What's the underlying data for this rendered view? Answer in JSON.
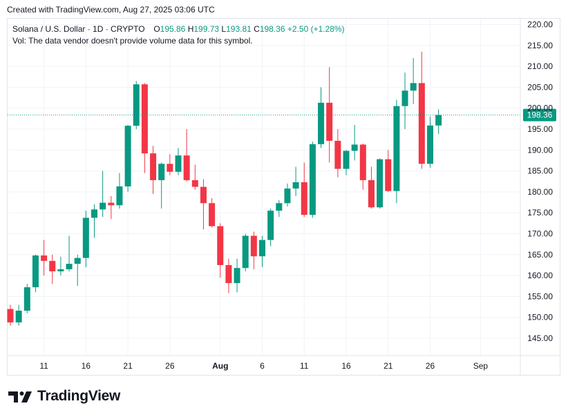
{
  "header": {
    "caption": "Created with TradingView.com, Aug 27, 2025 03:06 UTC"
  },
  "legend": {
    "symbol": "Solana / U.S. Dollar · 1D · CRYPTO",
    "o_label": "O",
    "o_value": "195.86",
    "h_label": "H",
    "h_value": "199.73",
    "l_label": "L",
    "l_value": "193.81",
    "c_label": "C",
    "c_value": "198.36",
    "change": "+2.50 (+1.28%)",
    "volume_note": "Vol: The data vendor doesn't provide volume data for this symbol."
  },
  "brand": {
    "name": "TradingView"
  },
  "colors": {
    "up": "#089981",
    "down": "#f23645",
    "grid": "#f0f3fa",
    "text": "#131722"
  },
  "chart_data": {
    "type": "candlestick",
    "title": "Solana / U.S. Dollar · 1D · CRYPTO",
    "ylim": [
      142,
      222
    ],
    "y_ticks": [
      145,
      150,
      155,
      160,
      165,
      170,
      175,
      180,
      185,
      190,
      195,
      200,
      205,
      210,
      215,
      220
    ],
    "y_tick_labels": [
      "145.00",
      "150.00",
      "155.00",
      "160.00",
      "165.00",
      "170.00",
      "175.00",
      "180.00",
      "185.00",
      "190.00",
      "195.00",
      "200.00",
      "205.00",
      "210.00",
      "215.00",
      "220.00"
    ],
    "x_ticks": [
      {
        "index": 4,
        "label": "11"
      },
      {
        "index": 9,
        "label": "16"
      },
      {
        "index": 14,
        "label": "21"
      },
      {
        "index": 19,
        "label": "26"
      },
      {
        "index": 25,
        "label": "Aug"
      },
      {
        "index": 30,
        "label": "6"
      },
      {
        "index": 35,
        "label": "11"
      },
      {
        "index": 40,
        "label": "16"
      },
      {
        "index": 45,
        "label": "21"
      },
      {
        "index": 50,
        "label": "26"
      },
      {
        "index": 56,
        "label": "Sep"
      }
    ],
    "last_price": 198.36,
    "last_price_label": "198.36",
    "candles": [
      {
        "o": 152,
        "h": 153,
        "l": 148,
        "c": 148.8
      },
      {
        "o": 148.8,
        "h": 153,
        "l": 148,
        "c": 151.6
      },
      {
        "o": 151.6,
        "h": 158,
        "l": 151,
        "c": 157.2
      },
      {
        "o": 157.2,
        "h": 165,
        "l": 156,
        "c": 164.8
      },
      {
        "o": 164.8,
        "h": 168.5,
        "l": 160,
        "c": 163.5
      },
      {
        "o": 163.5,
        "h": 165,
        "l": 158,
        "c": 161
      },
      {
        "o": 161,
        "h": 164.5,
        "l": 160,
        "c": 161.5
      },
      {
        "o": 161.5,
        "h": 169.5,
        "l": 161,
        "c": 162.8
      },
      {
        "o": 162.8,
        "h": 165,
        "l": 157.5,
        "c": 164.2
      },
      {
        "o": 164.2,
        "h": 175.5,
        "l": 162,
        "c": 173.8
      },
      {
        "o": 173.8,
        "h": 177,
        "l": 169,
        "c": 175.8
      },
      {
        "o": 175.8,
        "h": 185,
        "l": 174,
        "c": 177.4
      },
      {
        "o": 177.4,
        "h": 179,
        "l": 173.5,
        "c": 176.8
      },
      {
        "o": 176.8,
        "h": 184.5,
        "l": 176,
        "c": 181.3
      },
      {
        "o": 181.3,
        "h": 196,
        "l": 180,
        "c": 195.8
      },
      {
        "o": 195.8,
        "h": 206.5,
        "l": 195,
        "c": 205.7
      },
      {
        "o": 205.7,
        "h": 206,
        "l": 184.5,
        "c": 189.2
      },
      {
        "o": 189.2,
        "h": 191,
        "l": 179.5,
        "c": 182.8
      },
      {
        "o": 182.8,
        "h": 187,
        "l": 176,
        "c": 186.7
      },
      {
        "o": 186.7,
        "h": 189,
        "l": 184,
        "c": 184.8
      },
      {
        "o": 184.8,
        "h": 190.5,
        "l": 184,
        "c": 188.7
      },
      {
        "o": 188.7,
        "h": 195,
        "l": 182.5,
        "c": 182.8
      },
      {
        "o": 182.8,
        "h": 186.5,
        "l": 180.5,
        "c": 181.2
      },
      {
        "o": 181.2,
        "h": 183,
        "l": 171,
        "c": 177.3
      },
      {
        "o": 177.3,
        "h": 178.5,
        "l": 171.5,
        "c": 171.8
      },
      {
        "o": 171.8,
        "h": 172.5,
        "l": 159.5,
        "c": 162.5
      },
      {
        "o": 162.5,
        "h": 164,
        "l": 155.8,
        "c": 158.2
      },
      {
        "o": 158.2,
        "h": 164,
        "l": 156,
        "c": 161.8
      },
      {
        "o": 161.8,
        "h": 170,
        "l": 161,
        "c": 169.5
      },
      {
        "o": 169.5,
        "h": 170.5,
        "l": 161.5,
        "c": 164.6
      },
      {
        "o": 164.6,
        "h": 169.5,
        "l": 162,
        "c": 168.5
      },
      {
        "o": 168.5,
        "h": 176,
        "l": 167,
        "c": 175.5
      },
      {
        "o": 175.5,
        "h": 178,
        "l": 174,
        "c": 177.3
      },
      {
        "o": 177.3,
        "h": 182,
        "l": 176.5,
        "c": 180.8
      },
      {
        "o": 180.8,
        "h": 186,
        "l": 179,
        "c": 182.3
      },
      {
        "o": 182.3,
        "h": 187,
        "l": 174,
        "c": 174.5
      },
      {
        "o": 174.5,
        "h": 192,
        "l": 173.8,
        "c": 191.4
      },
      {
        "o": 191.4,
        "h": 205,
        "l": 190.5,
        "c": 201.3
      },
      {
        "o": 201.3,
        "h": 209.8,
        "l": 187,
        "c": 192.2
      },
      {
        "o": 192.2,
        "h": 195,
        "l": 183.5,
        "c": 185.5
      },
      {
        "o": 185.5,
        "h": 190,
        "l": 184,
        "c": 189.8
      },
      {
        "o": 189.8,
        "h": 196,
        "l": 187.5,
        "c": 191.3
      },
      {
        "o": 191.3,
        "h": 191.5,
        "l": 180.5,
        "c": 182.8
      },
      {
        "o": 182.8,
        "h": 186,
        "l": 176,
        "c": 176.3
      },
      {
        "o": 176.3,
        "h": 188,
        "l": 176,
        "c": 187.8
      },
      {
        "o": 187.8,
        "h": 190,
        "l": 180,
        "c": 180.2
      },
      {
        "o": 180.2,
        "h": 202,
        "l": 177.3,
        "c": 200.5
      },
      {
        "o": 200.5,
        "h": 208.5,
        "l": 195,
        "c": 204.2
      },
      {
        "o": 204.2,
        "h": 212,
        "l": 201,
        "c": 206
      },
      {
        "o": 206,
        "h": 213.5,
        "l": 185.5,
        "c": 186.7
      },
      {
        "o": 186.7,
        "h": 198,
        "l": 185.8,
        "c": 195.86
      },
      {
        "o": 195.86,
        "h": 199.73,
        "l": 193.81,
        "c": 198.36
      }
    ]
  }
}
